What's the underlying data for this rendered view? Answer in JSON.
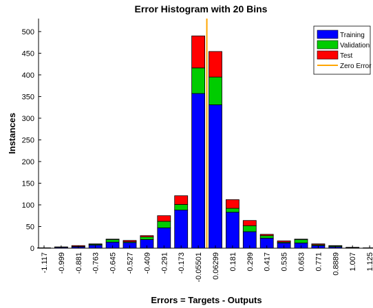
{
  "chart_data": {
    "type": "bar",
    "stacked": true,
    "title": "Error Histogram with 20 Bins",
    "xlabel": "Errors = Targets - Outputs",
    "ylabel": "Instances",
    "ylim": [
      0,
      530
    ],
    "yticks": [
      0,
      50,
      100,
      150,
      200,
      250,
      300,
      350,
      400,
      450,
      500
    ],
    "categories": [
      "-1.117",
      "-0.999",
      "-0.881",
      "-0.763",
      "-0.645",
      "-0.527",
      "-0.409",
      "-0.291",
      "-0.173",
      "-0.05501",
      "0.06299",
      "0.181",
      "0.299",
      "0.417",
      "0.535",
      "0.653",
      "0.771",
      "0.8889",
      "1.007",
      "1.125"
    ],
    "series": [
      {
        "name": "Training",
        "color": "#0000ff",
        "values": [
          1,
          2,
          3,
          7,
          14,
          13,
          20,
          47,
          88,
          357,
          331,
          83,
          38,
          23,
          12,
          12,
          6,
          3,
          1,
          1
        ]
      },
      {
        "name": "Validation",
        "color": "#00cc00",
        "values": [
          0,
          1,
          1,
          2,
          6,
          2,
          6,
          15,
          13,
          59,
          64,
          9,
          14,
          6,
          2,
          8,
          2,
          2,
          1,
          0
        ]
      },
      {
        "name": "Test",
        "color": "#ff0000",
        "values": [
          0,
          0,
          2,
          1,
          1,
          3,
          3,
          13,
          20,
          74,
          59,
          20,
          12,
          3,
          3,
          1,
          2,
          1,
          0,
          0
        ]
      }
    ],
    "zero_error": {
      "name": "Zero Error",
      "color": "#ffa500",
      "position_between": [
        "-0.05501",
        "0.06299"
      ]
    },
    "grid": false,
    "legend": "top-right"
  }
}
